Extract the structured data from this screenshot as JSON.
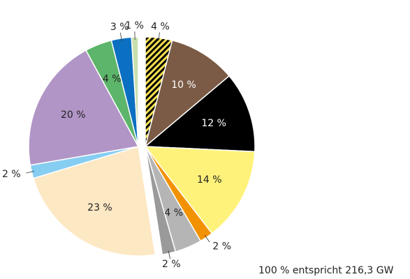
{
  "chart_data": {
    "type": "pie",
    "values": [
      4,
      10,
      12,
      14,
      2,
      4,
      2,
      23,
      2,
      20,
      4,
      3,
      1
    ],
    "value_labels": [
      "4 %",
      "10 %",
      "12 %",
      "14 %",
      "2 %",
      "4 %",
      "2 %",
      "23 %",
      "2 %",
      "20 %",
      "4 %",
      "3 %",
      "1 %"
    ],
    "colors": [
      "#f3df4f",
      "#7b5b45",
      "#000000",
      "#fff27a",
      "#f39200",
      "#b5b5b5",
      "#9a9a9a",
      "#fde8c4",
      "#86cdf2",
      "#b195c6",
      "#5cb56a",
      "#0b70c1",
      "#c8e0ae"
    ],
    "hatched": [
      0
    ],
    "note": "100 % entspricht 216,3 GW"
  }
}
